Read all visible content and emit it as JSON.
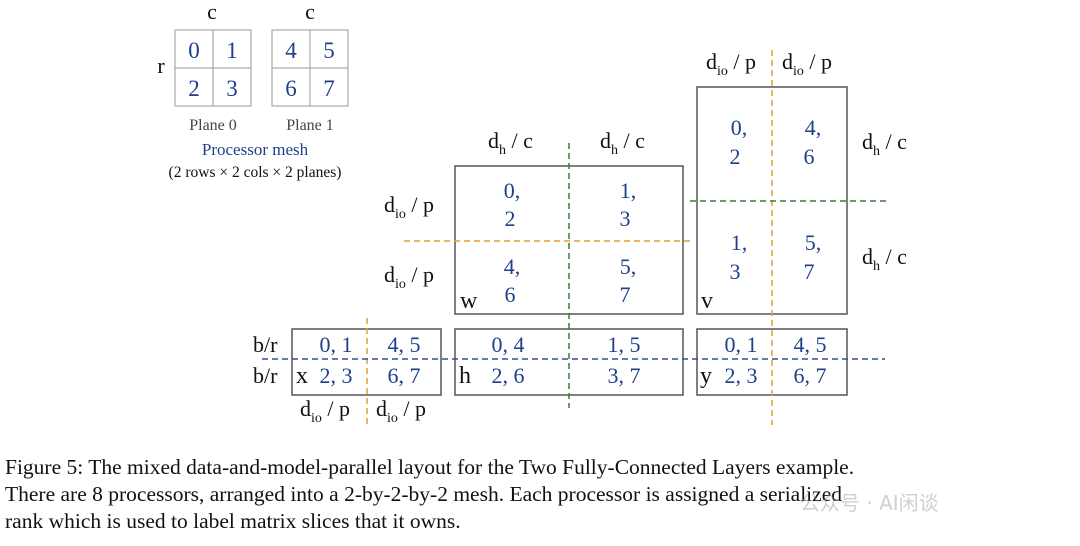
{
  "mesh": {
    "col_label": "c",
    "row_label": "r",
    "plane0": {
      "cells": [
        "0",
        "1",
        "2",
        "3"
      ],
      "label": "Plane 0"
    },
    "plane1": {
      "cells": [
        "4",
        "5",
        "6",
        "7"
      ],
      "label": "Plane 1"
    },
    "title": "Processor mesh",
    "subtitle": "(2 rows × 2 cols × 2 planes)"
  },
  "labels": {
    "dh_c": {
      "d": "d",
      "sub": "h",
      "rest": " / c"
    },
    "dio_p": {
      "d": "d",
      "sub": "io",
      "rest": " / p"
    },
    "b_r": "b/r"
  },
  "matrix_w": {
    "letter": "w",
    "cells": [
      [
        "0,",
        "2"
      ],
      [
        "1,",
        "3"
      ],
      [
        "4,",
        "6"
      ],
      [
        "5,",
        "7"
      ]
    ]
  },
  "matrix_v": {
    "letter": "v",
    "cells": [
      [
        "0,",
        "2"
      ],
      [
        "4,",
        "6"
      ],
      [
        "1,",
        "3"
      ],
      [
        "5,",
        "7"
      ]
    ]
  },
  "matrix_x": {
    "letter": "x",
    "cells": [
      "0, 1",
      "4, 5",
      "2, 3",
      "6, 7"
    ]
  },
  "matrix_h": {
    "letter": "h",
    "cells": [
      "0, 4",
      "1, 5",
      "2, 6",
      "3, 7"
    ]
  },
  "matrix_y": {
    "letter": "y",
    "cells": [
      "0, 1",
      "4, 5",
      "2, 3",
      "6, 7"
    ]
  },
  "colors": {
    "number_blue": "#1f3f8a",
    "orange_dash": "#e0a030",
    "green_dash": "#3f7a3a",
    "blue_dash": "#2f4f9f"
  },
  "caption": {
    "line1": "Figure 5: The mixed data-and-model-parallel layout for the Two Fully-Connected Layers example.",
    "line2": "There are 8 processors, arranged into a 2-by-2-by-2 mesh. Each processor is assigned a serialized",
    "line3": "rank which is used to label matrix slices that it owns."
  },
  "watermark": "公众号 · AI闲谈"
}
